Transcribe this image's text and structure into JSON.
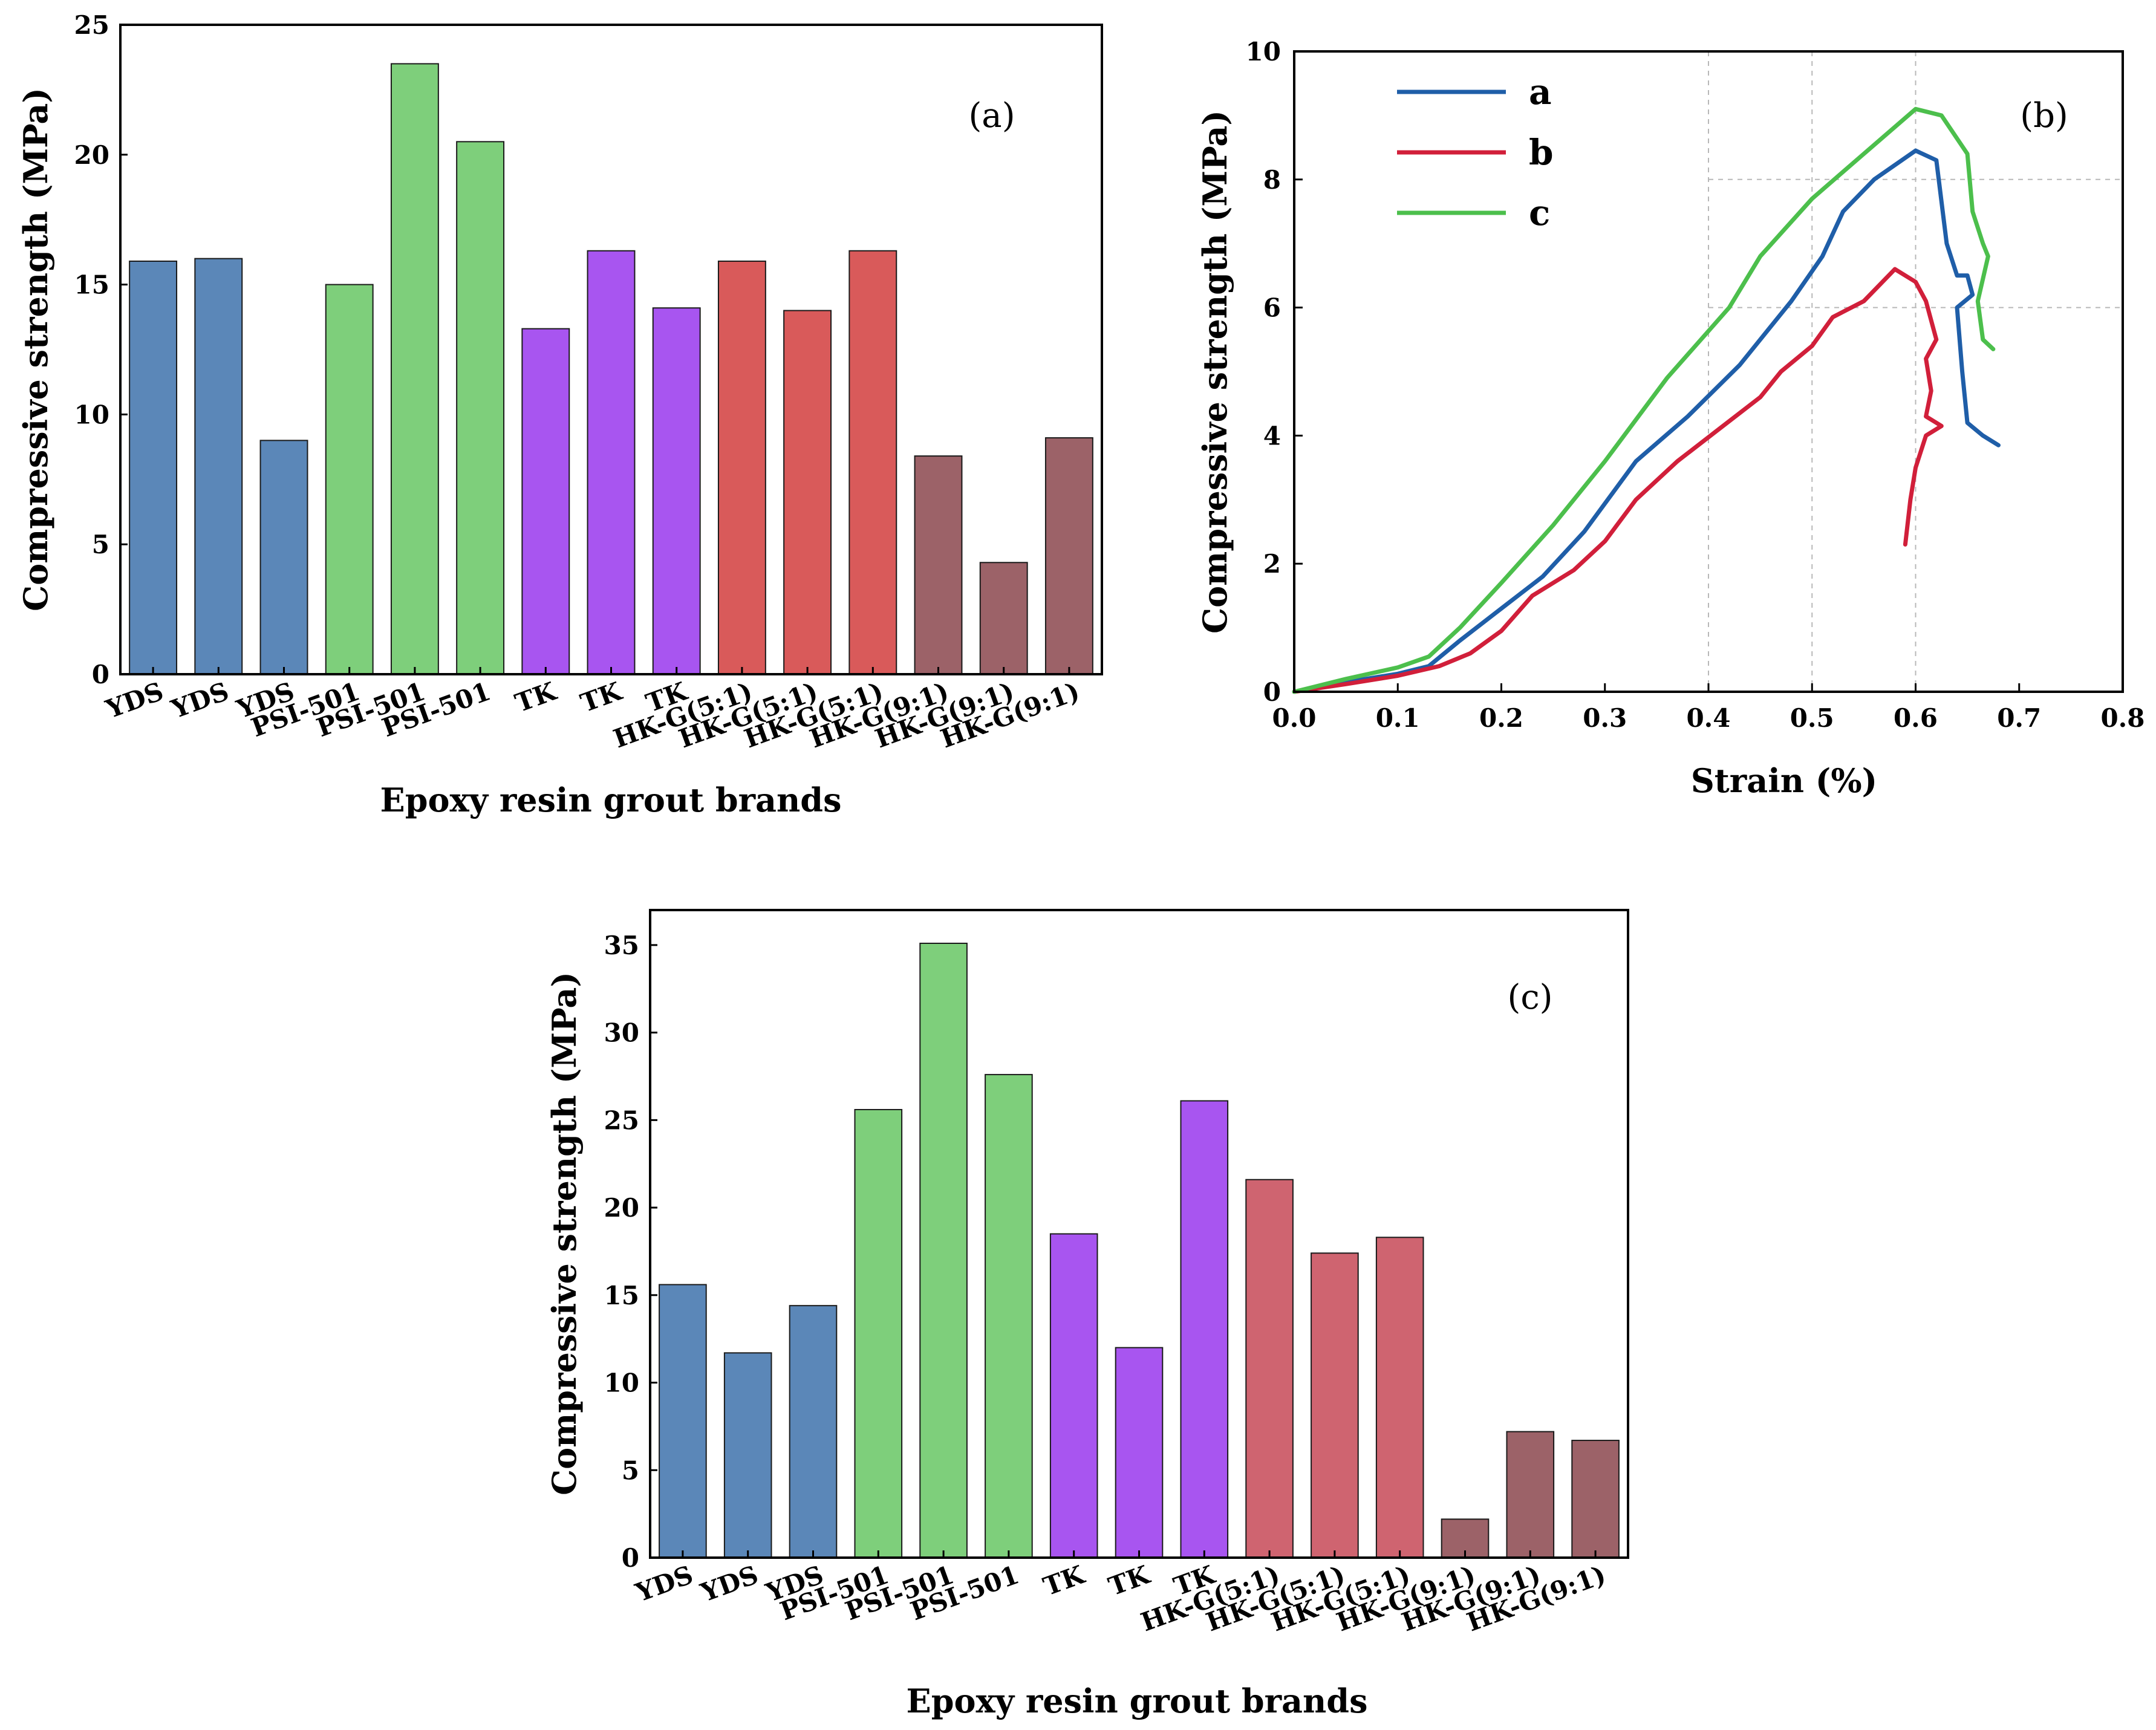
{
  "chart_data": [
    {
      "id": "a",
      "type": "bar",
      "panel_label": "(a)",
      "xlabel": "Epoxy resin grout brands",
      "ylabel": "Compressive strength (MPa)",
      "ylim": [
        0,
        25
      ],
      "yticks": [
        "0",
        "5",
        "10",
        "15",
        "20",
        "25"
      ],
      "categories": [
        "YDS",
        "YDS",
        "YDS",
        "PSI-501",
        "PSI-501",
        "PSI-501",
        "TK",
        "TK",
        "TK",
        "HK-G(5:1)",
        "HK-G(5:1)",
        "HK-G(5:1)",
        "HK-G(9:1)",
        "HK-G(9:1)",
        "HK-G(9:1)"
      ],
      "values": [
        15.9,
        16.0,
        9.0,
        15.0,
        23.5,
        20.5,
        13.3,
        16.3,
        14.1,
        15.9,
        14.0,
        16.3,
        8.4,
        4.3,
        9.1
      ],
      "colors": [
        "#5b87b8",
        "#5b87b8",
        "#5b87b8",
        "#7ecf7b",
        "#7ecf7b",
        "#7ecf7b",
        "#a855f0",
        "#a855f0",
        "#a855f0",
        "#d95a5a",
        "#d95a5a",
        "#d95a5a",
        "#9c6268",
        "#9c6268",
        "#9c6268"
      ]
    },
    {
      "id": "b",
      "type": "line",
      "panel_label": "(b)",
      "xlabel": "Strain (%)",
      "ylabel": "Compressive strength (MPa)",
      "xlim": [
        0,
        0.8
      ],
      "ylim": [
        0,
        10
      ],
      "xticks": [
        "0.0",
        "0.1",
        "0.2",
        "0.3",
        "0.4",
        "0.5",
        "0.6",
        "0.7",
        "0.8"
      ],
      "yticks": [
        "0",
        "2",
        "4",
        "6",
        "8",
        "10"
      ],
      "grid_x": [
        0.4,
        0.5,
        0.6
      ],
      "grid_y": [
        6,
        8
      ],
      "legend_position": "top-left",
      "series": [
        {
          "name": "a",
          "color": "#1f5ea8",
          "points": [
            [
              0,
              0
            ],
            [
              0.05,
              0.15
            ],
            [
              0.1,
              0.28
            ],
            [
              0.13,
              0.4
            ],
            [
              0.16,
              0.8
            ],
            [
              0.2,
              1.3
            ],
            [
              0.24,
              1.8
            ],
            [
              0.28,
              2.5
            ],
            [
              0.33,
              3.6
            ],
            [
              0.38,
              4.3
            ],
            [
              0.43,
              5.1
            ],
            [
              0.48,
              6.1
            ],
            [
              0.51,
              6.8
            ],
            [
              0.53,
              7.5
            ],
            [
              0.56,
              8.0
            ],
            [
              0.6,
              8.45
            ],
            [
              0.62,
              8.3
            ],
            [
              0.63,
              7.0
            ],
            [
              0.64,
              6.5
            ],
            [
              0.65,
              6.5
            ],
            [
              0.655,
              6.2
            ],
            [
              0.64,
              6.0
            ],
            [
              0.645,
              5.0
            ],
            [
              0.65,
              4.2
            ],
            [
              0.665,
              4.0
            ],
            [
              0.68,
              3.85
            ]
          ]
        },
        {
          "name": "b",
          "color": "#d11f3a",
          "points": [
            [
              0,
              0
            ],
            [
              0.05,
              0.12
            ],
            [
              0.1,
              0.25
            ],
            [
              0.14,
              0.4
            ],
            [
              0.17,
              0.6
            ],
            [
              0.2,
              0.95
            ],
            [
              0.23,
              1.5
            ],
            [
              0.27,
              1.9
            ],
            [
              0.3,
              2.35
            ],
            [
              0.33,
              3.0
            ],
            [
              0.37,
              3.6
            ],
            [
              0.41,
              4.1
            ],
            [
              0.45,
              4.6
            ],
            [
              0.47,
              5.0
            ],
            [
              0.5,
              5.4
            ],
            [
              0.52,
              5.85
            ],
            [
              0.55,
              6.1
            ],
            [
              0.58,
              6.6
            ],
            [
              0.6,
              6.4
            ],
            [
              0.61,
              6.1
            ],
            [
              0.615,
              5.8
            ],
            [
              0.62,
              5.5
            ],
            [
              0.61,
              5.2
            ],
            [
              0.615,
              4.7
            ],
            [
              0.61,
              4.3
            ],
            [
              0.62,
              4.2
            ],
            [
              0.625,
              4.15
            ],
            [
              0.61,
              4.0
            ],
            [
              0.6,
              3.5
            ],
            [
              0.595,
              3.0
            ],
            [
              0.59,
              2.3
            ]
          ]
        },
        {
          "name": "c",
          "color": "#4cbf4c",
          "points": [
            [
              0,
              0
            ],
            [
              0.05,
              0.2
            ],
            [
              0.1,
              0.38
            ],
            [
              0.13,
              0.55
            ],
            [
              0.16,
              1.0
            ],
            [
              0.2,
              1.7
            ],
            [
              0.25,
              2.6
            ],
            [
              0.3,
              3.6
            ],
            [
              0.36,
              4.9
            ],
            [
              0.42,
              6.0
            ],
            [
              0.45,
              6.8
            ],
            [
              0.5,
              7.7
            ],
            [
              0.55,
              8.4
            ],
            [
              0.6,
              9.1
            ],
            [
              0.625,
              9.0
            ],
            [
              0.65,
              8.4
            ],
            [
              0.655,
              7.5
            ],
            [
              0.665,
              7.0
            ],
            [
              0.67,
              6.8
            ],
            [
              0.66,
              6.1
            ],
            [
              0.665,
              5.5
            ],
            [
              0.675,
              5.35
            ]
          ]
        }
      ]
    },
    {
      "id": "c",
      "type": "bar",
      "panel_label": "(c)",
      "xlabel": "Epoxy resin grout brands",
      "ylabel": "Compressive strength (MPa)",
      "ylim": [
        0,
        37
      ],
      "yticks": [
        "0",
        "5",
        "10",
        "15",
        "20",
        "25",
        "30",
        "35"
      ],
      "categories": [
        "YDS",
        "YDS",
        "YDS",
        "PSI-501",
        "PSI-501",
        "PSI-501",
        "TK",
        "TK",
        "TK",
        "HK-G(5:1)",
        "HK-G(5:1)",
        "HK-G(5:1)",
        "HK-G(9:1)",
        "HK-G(9:1)",
        "HK-G(9:1)"
      ],
      "values": [
        15.6,
        11.7,
        14.4,
        25.6,
        35.1,
        27.6,
        18.5,
        12.0,
        26.1,
        21.6,
        17.4,
        18.3,
        2.2,
        7.2,
        6.7
      ],
      "colors": [
        "#5b87b8",
        "#5b87b8",
        "#5b87b8",
        "#7ecf7b",
        "#7ecf7b",
        "#7ecf7b",
        "#a855f0",
        "#a855f0",
        "#a855f0",
        "#cf6470",
        "#cf6470",
        "#cf6470",
        "#9c6268",
        "#9c6268",
        "#9c6268"
      ]
    }
  ]
}
